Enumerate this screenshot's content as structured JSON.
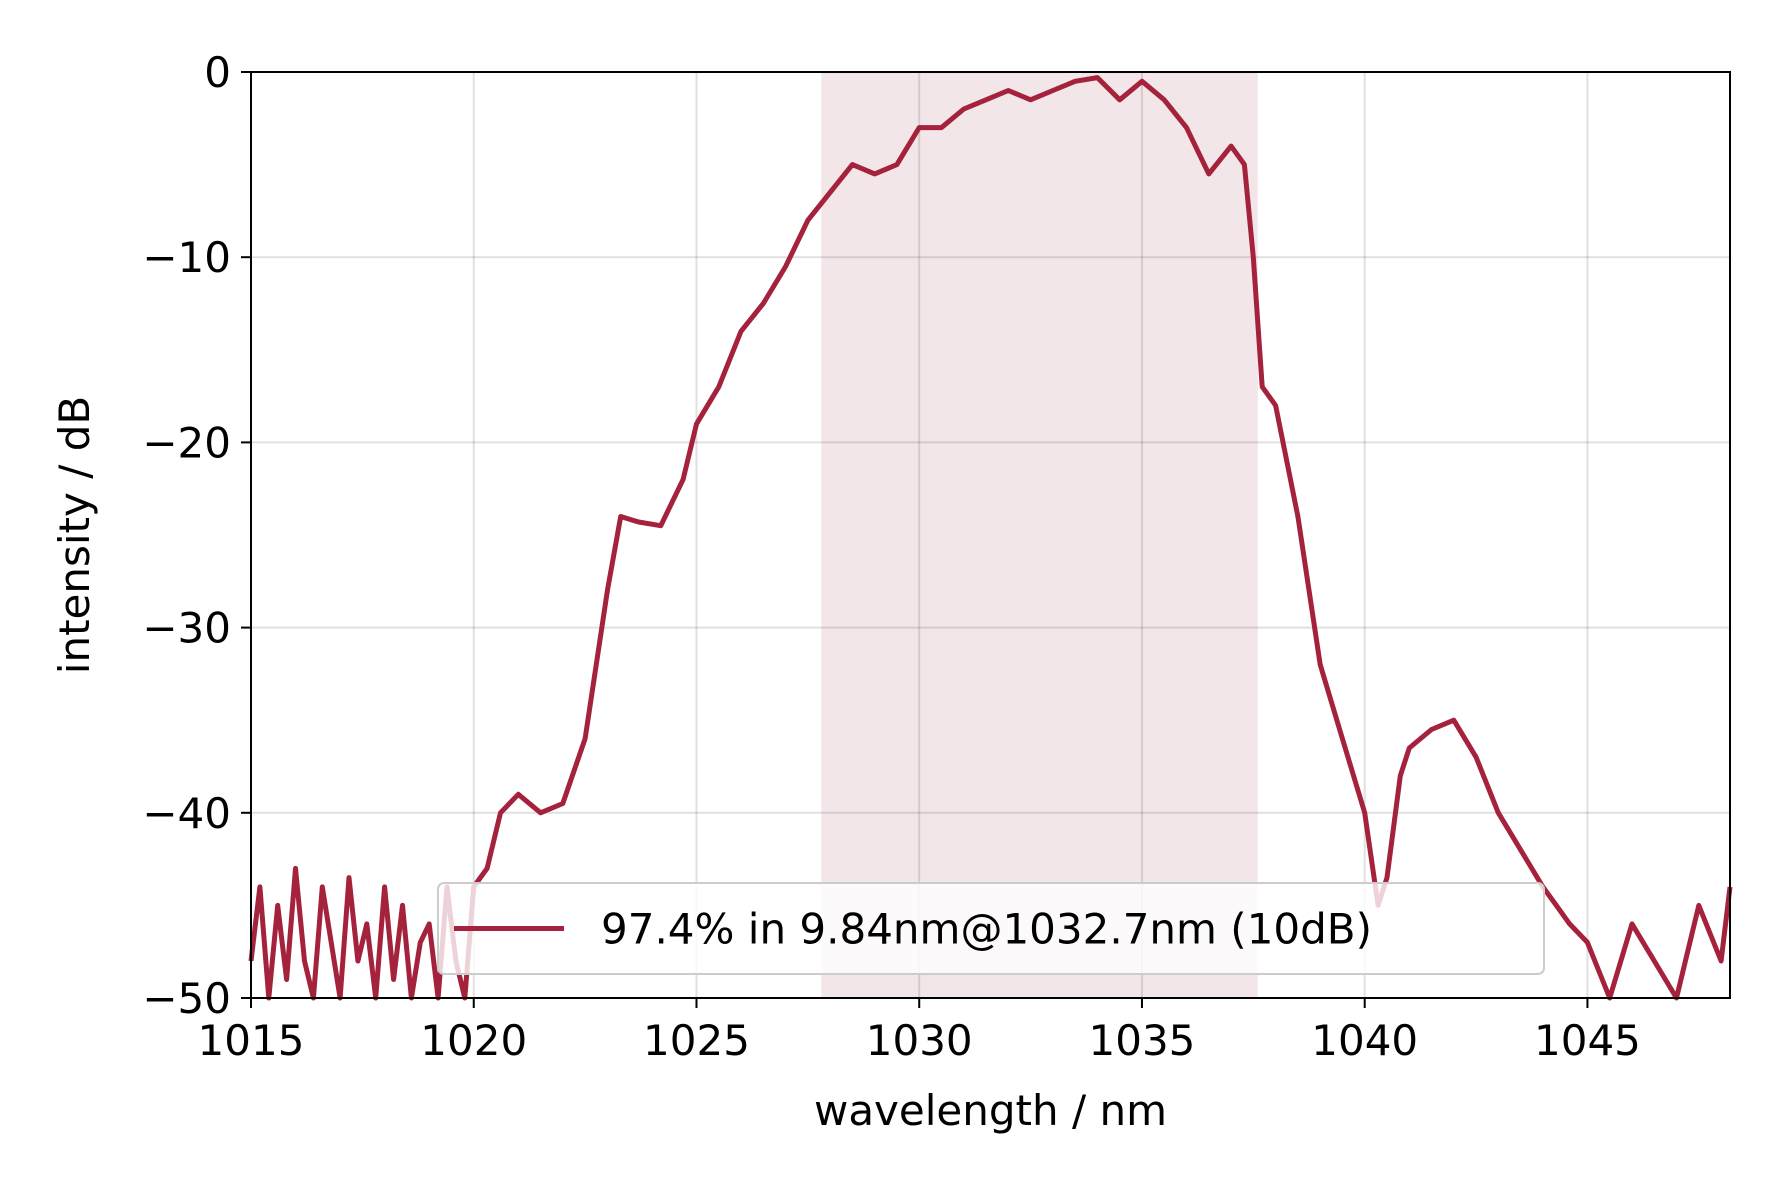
{
  "chart_data": {
    "type": "line",
    "xlabel": "wavelength / nm",
    "ylabel": "intensity / dB",
    "xlim": [
      1015,
      1048.2
    ],
    "ylim": [
      -50,
      0
    ],
    "xticks": [
      1015,
      1020,
      1025,
      1030,
      1035,
      1040,
      1045
    ],
    "xtick_labels": [
      "1015",
      "1020",
      "1025",
      "1030",
      "1035",
      "1040",
      "1045"
    ],
    "yticks": [
      0,
      -10,
      -20,
      -30,
      -40,
      -50
    ],
    "ytick_labels": [
      "0",
      "−10",
      "−20",
      "−30",
      "−40",
      "−50"
    ],
    "grid": true,
    "legend_position": "lower center",
    "shaded_band": {
      "x0": 1027.8,
      "x1": 1037.6,
      "color": "#f2e6e9"
    },
    "series": [
      {
        "name": "97.4% in 9.84nm@1032.7nm (10dB)",
        "color": "#a5223d",
        "x": [
          1015.0,
          1015.2,
          1015.4,
          1015.6,
          1015.8,
          1016.0,
          1016.2,
          1016.4,
          1016.6,
          1016.8,
          1017.0,
          1017.2,
          1017.4,
          1017.6,
          1017.8,
          1018.0,
          1018.2,
          1018.4,
          1018.6,
          1018.8,
          1019.0,
          1019.2,
          1019.4,
          1019.6,
          1019.8,
          1020.0,
          1020.3,
          1020.6,
          1021.0,
          1021.5,
          1022.0,
          1022.5,
          1023.0,
          1023.3,
          1023.7,
          1024.2,
          1024.7,
          1025.0,
          1025.5,
          1026.0,
          1026.5,
          1027.0,
          1027.5,
          1028.0,
          1028.5,
          1029.0,
          1029.5,
          1030.0,
          1030.5,
          1031.0,
          1031.5,
          1032.0,
          1032.5,
          1033.0,
          1033.5,
          1034.0,
          1034.5,
          1035.0,
          1035.5,
          1036.0,
          1036.5,
          1037.0,
          1037.3,
          1037.5,
          1037.7,
          1038.0,
          1038.5,
          1039.0,
          1039.5,
          1040.0,
          1040.3,
          1040.5,
          1040.8,
          1041.0,
          1041.5,
          1042.0,
          1042.5,
          1043.0,
          1043.5,
          1044.0,
          1044.3,
          1044.6,
          1045.0,
          1045.5,
          1046.0,
          1046.5,
          1047.0,
          1047.5,
          1048.0,
          1048.2
        ],
        "y": [
          -48,
          -44,
          -50,
          -45,
          -49,
          -43,
          -48,
          -50,
          -44,
          -47,
          -50,
          -43.5,
          -48,
          -46,
          -50,
          -44,
          -49,
          -45,
          -50,
          -47,
          -46,
          -50,
          -44,
          -48,
          -50,
          -44,
          -43,
          -40,
          -39,
          -40,
          -39.5,
          -36,
          -28,
          -24,
          -24.3,
          -24.5,
          -22,
          -19,
          -17,
          -14,
          -12.5,
          -10.5,
          -8,
          -6.5,
          -5,
          -5.5,
          -5,
          -3,
          -3,
          -2,
          -1.5,
          -1,
          -1.5,
          -1,
          -0.5,
          -0.3,
          -1.5,
          -0.5,
          -1.5,
          -3,
          -5.5,
          -4,
          -5,
          -10,
          -17,
          -18,
          -24,
          -32,
          -36,
          -40,
          -45,
          -43.5,
          -38,
          -36.5,
          -35.5,
          -35,
          -37,
          -40,
          -42,
          -44,
          -45,
          -46,
          -47,
          -50,
          -46,
          -48,
          -50,
          -45,
          -48,
          -44
        ]
      }
    ]
  }
}
